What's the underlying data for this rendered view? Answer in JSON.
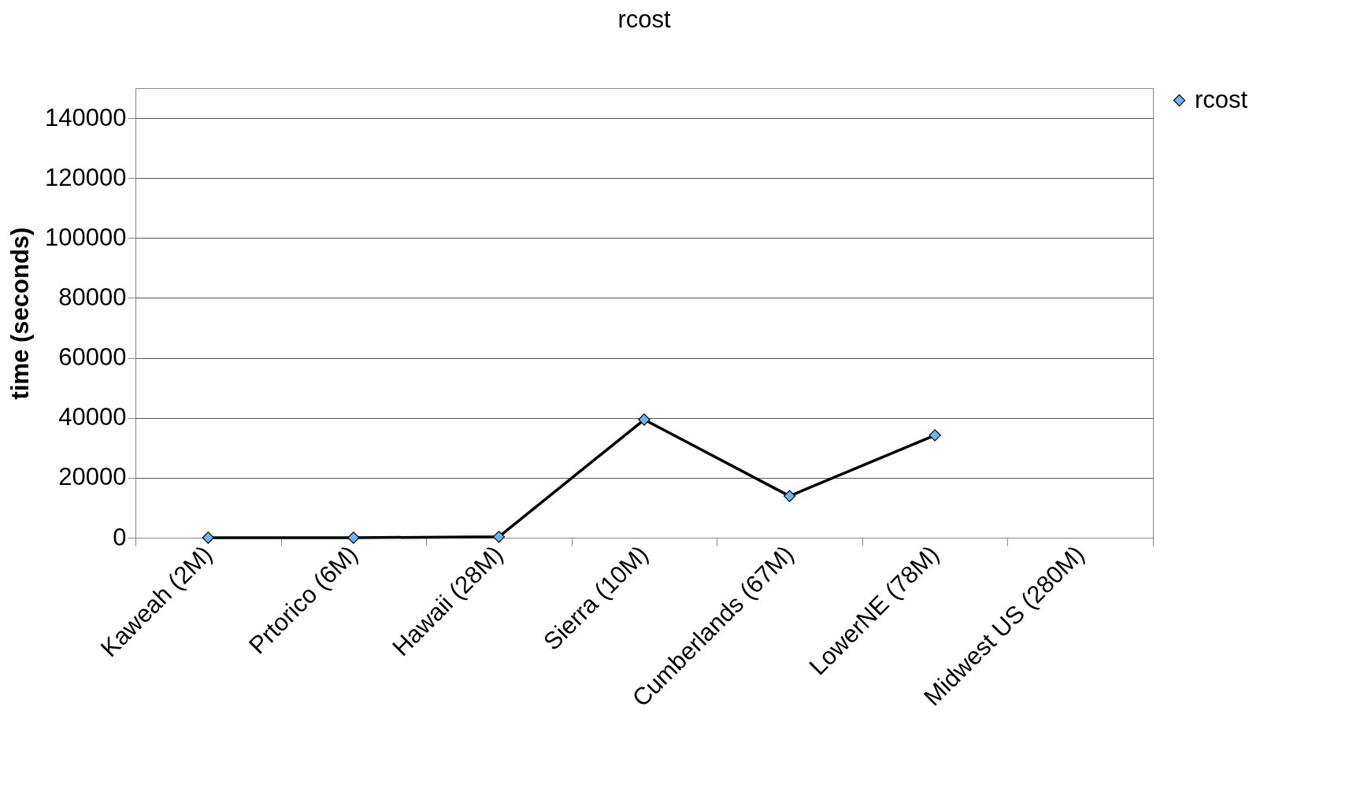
{
  "chart_data": {
    "type": "line",
    "title": "rcost",
    "ylabel": "time (seconds)",
    "categories": [
      "Kaweah (2M)",
      "Prtorico (6M)",
      "Hawaii (28M)",
      "Sierra (10M)",
      "Cumberlands (67M)",
      "LowerNE (78M)",
      "Midwest US (280M)"
    ],
    "series": [
      {
        "name": "rcost",
        "color": "#6cb4f2",
        "values": [
          0,
          0,
          300,
          39400,
          13900,
          34200,
          null
        ]
      }
    ],
    "ylim": [
      0,
      150000
    ],
    "yticks": [
      0,
      20000,
      40000,
      60000,
      80000,
      100000,
      120000,
      140000
    ],
    "grid": "y",
    "legend": "right",
    "marker": "diamond",
    "line_style": "solid"
  }
}
